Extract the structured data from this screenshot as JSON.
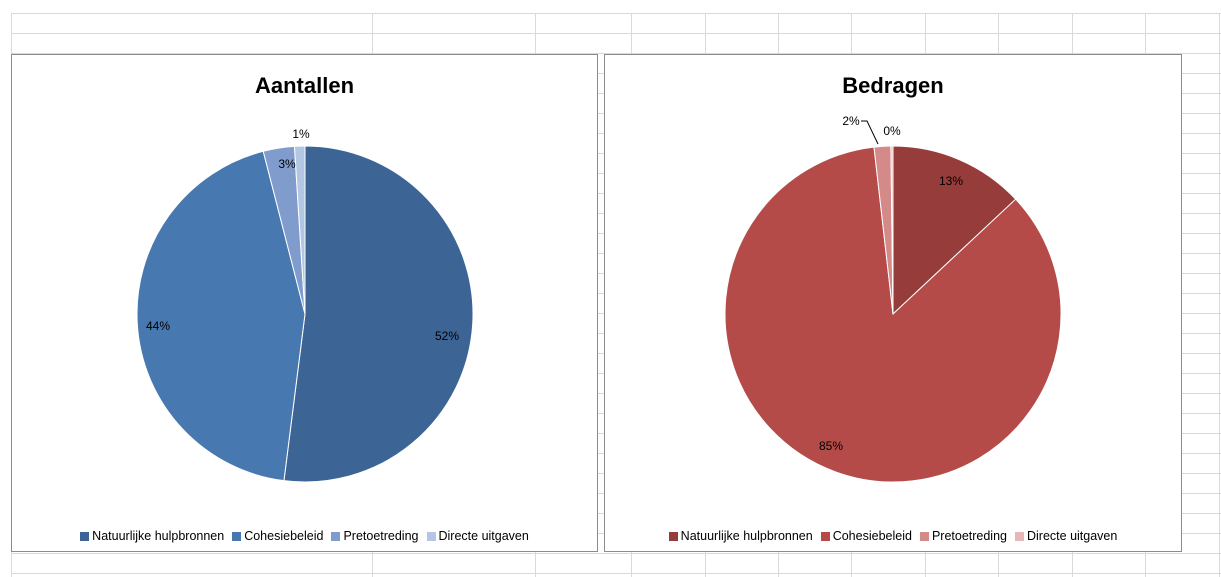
{
  "chart_data": [
    {
      "type": "pie",
      "title": "Aantallen",
      "categories": [
        "Natuurlijke hulpbronnen",
        "Cohesiebeleid",
        "Pretoetreding",
        "Directe uitgaven"
      ],
      "values": [
        52,
        44,
        3,
        1
      ],
      "labels": [
        "52%",
        "44%",
        "3%",
        "1%"
      ],
      "colors": [
        "#3c6495",
        "#4878b0",
        "#7f9ccc",
        "#b3c6e3"
      ],
      "legend": "bottom"
    },
    {
      "type": "pie",
      "title": "Bedragen",
      "categories": [
        "Natuurlijke hulpbronnen",
        "Cohesiebeleid",
        "Pretoetreding",
        "Directe uitgaven"
      ],
      "values": [
        13,
        85,
        1.6,
        0.2
      ],
      "labels": [
        "13%",
        "85%",
        "2%",
        "0%"
      ],
      "colors": [
        "#963c3b",
        "#b54b49",
        "#d48a88",
        "#e6b7b6"
      ],
      "legend": "bottom"
    }
  ]
}
